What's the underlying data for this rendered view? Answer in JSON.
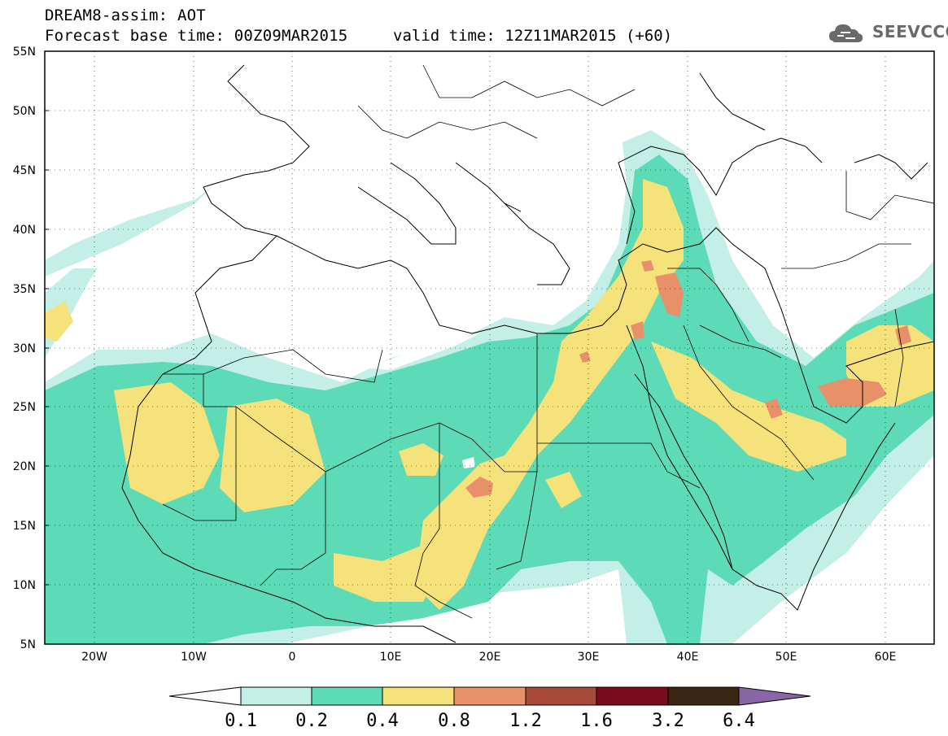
{
  "title": {
    "line1": "DREAM8-assim: AOT",
    "line2": "Forecast base time: 00Z09MAR2015",
    "valid": "valid time: 12Z11MAR2015 (+60)"
  },
  "logo": {
    "text": "SEEVCCC",
    "icon": "cloud-icon"
  },
  "map": {
    "lon_range": [
      -25,
      65
    ],
    "lat_range": [
      5,
      55
    ],
    "lat_ticks": [
      "5N",
      "10N",
      "15N",
      "20N",
      "25N",
      "30N",
      "35N",
      "40N",
      "45N",
      "50N",
      "55N"
    ],
    "lon_ticks": [
      "20W",
      "10W",
      "0",
      "10E",
      "20E",
      "30E",
      "40E",
      "50E",
      "60E"
    ]
  },
  "colorbar": {
    "labels": [
      "0.1",
      "0.2",
      "0.4",
      "0.8",
      "1.2",
      "1.6",
      "3.2",
      "6.4"
    ],
    "colors": [
      "#ffffff",
      "#c4efe6",
      "#5ddbb6",
      "#f5e27a",
      "#e8906a",
      "#a84a3a",
      "#7a0a1e",
      "#3a2612",
      "#8a66a8"
    ]
  }
}
